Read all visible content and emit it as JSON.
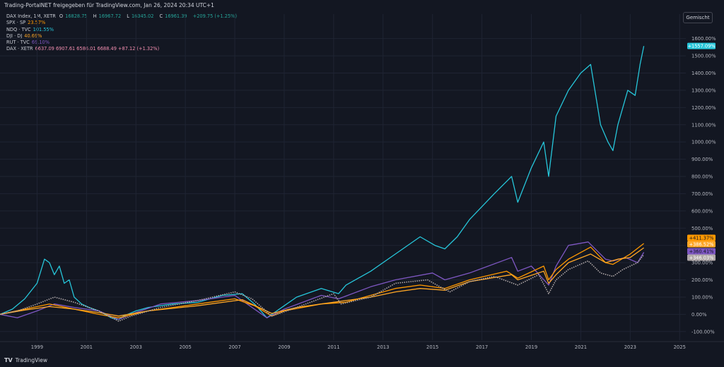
{
  "header": {
    "text": "Trading-PortalNET freigegeben für TradingView.com, Jan 26, 2024 20:34 UTC+1"
  },
  "mode_button": {
    "label": "Gemischt"
  },
  "footer": {
    "logo": "TV",
    "brand": "TradingView"
  },
  "legend": {
    "main": {
      "name": "DAX Index, 1M, XETR",
      "o_label": "O",
      "o": "16828.75",
      "h_label": "H",
      "h": "16967.72",
      "l_label": "L",
      "l": "16345.02",
      "c_label": "C",
      "c": "16961.39",
      "chg": "+209.75 (+1.25%)",
      "color": "#26a69a"
    },
    "items": [
      {
        "name": "SPX · SP",
        "value": "23.57%",
        "color": "#ff9800"
      },
      {
        "name": "NDQ · TVC",
        "value": "101.55%",
        "color": "#26c6da"
      },
      {
        "name": "DJI · DJ",
        "value": "40.69%",
        "color": "#ffa726"
      },
      {
        "name": "RUT · TVC",
        "value": "69.10%",
        "color": "#7e57c2"
      }
    ],
    "dax2": {
      "name": "DAX · XETR",
      "values": "6637.09  6907.61  6586.01  6688.49  +87.12 (+1.32%)",
      "color": "#f48fb1"
    }
  },
  "chart_data": {
    "type": "line",
    "title": "",
    "xlabel": "",
    "ylabel": "",
    "x_ticks": [
      "1999",
      "2001",
      "2003",
      "2005",
      "2007",
      "2009",
      "2011",
      "2013",
      "2015",
      "2017",
      "2019",
      "2021",
      "2023",
      "2025"
    ],
    "xlim": [
      1998.0,
      2025.75
    ],
    "y_ticks": [
      "-100.00%",
      "0.00%",
      "100.00%",
      "200.00%",
      "300.00%",
      "400.00%",
      "500.00%",
      "600.00%",
      "700.00%",
      "800.00%",
      "900.00%",
      "1000.00%",
      "1100.00%",
      "1200.00%",
      "1300.00%",
      "1400.00%",
      "1500.00%",
      "1600.00%"
    ],
    "ylim": [
      -150,
      1660
    ],
    "grid": true,
    "series": [
      {
        "name": "NDQ · TVC",
        "color": "#26c6da",
        "last_label": "+1557.09%",
        "last_value": 1557,
        "x": [
          1998.0,
          1998.5,
          1999.0,
          1999.5,
          1999.8,
          2000.0,
          2000.2,
          2000.4,
          2000.6,
          2000.8,
          2001.0,
          2001.3,
          2001.6,
          2002.0,
          2002.5,
          2002.8,
          2003.0,
          2003.5,
          2004.0,
          2005.0,
          2006.0,
          2007.0,
          2007.8,
          2008.3,
          2008.8,
          2009.0,
          2009.5,
          2010.0,
          2011.0,
          2011.7,
          2012.0,
          2013.0,
          2014.0,
          2015.0,
          2015.6,
          2016.0,
          2016.5,
          2017.0,
          2018.0,
          2018.7,
          2018.95,
          2019.5,
          2020.0,
          2020.2,
          2020.5,
          2021.0,
          2021.5,
          2021.9,
          2022.3,
          2022.6,
          2022.8,
          2023.0,
          2023.4,
          2023.7,
          2023.9,
          2024.05
        ],
        "values": [
          0,
          30,
          90,
          180,
          320,
          300,
          230,
          280,
          180,
          200,
          100,
          60,
          40,
          20,
          -20,
          -30,
          -10,
          20,
          40,
          60,
          70,
          110,
          120,
          60,
          -20,
          0,
          50,
          100,
          150,
          120,
          170,
          250,
          350,
          450,
          400,
          380,
          450,
          550,
          700,
          800,
          650,
          850,
          1000,
          800,
          1150,
          1300,
          1400,
          1450,
          1100,
          1000,
          950,
          1100,
          1300,
          1270,
          1450,
          1557
        ]
      },
      {
        "name": "RUT · TVC",
        "color": "#7e57c2",
        "last_label": "+360.41%",
        "last_value": 360,
        "x": [
          1998.0,
          1998.7,
          1999.5,
          2000.2,
          2001.0,
          2002.0,
          2002.8,
          2003.5,
          2004.5,
          2006.0,
          2007.5,
          2008.8,
          2009.5,
          2011.0,
          2011.7,
          2013.0,
          2014.0,
          2015.5,
          2016.0,
          2017.0,
          2018.7,
          2018.95,
          2019.5,
          2020.2,
          2020.5,
          2021.0,
          2021.8,
          2022.5,
          2022.8,
          2023.3,
          2023.8,
          2024.05
        ],
        "values": [
          0,
          -20,
          20,
          60,
          40,
          20,
          -30,
          10,
          60,
          80,
          110,
          -20,
          30,
          110,
          90,
          160,
          200,
          240,
          200,
          240,
          330,
          250,
          280,
          170,
          280,
          400,
          420,
          320,
          310,
          330,
          300,
          360
        ]
      },
      {
        "name": "SPX · SP",
        "color": "#ff9800",
        "last_label": "+411.37%",
        "last_value": 411,
        "x": [
          1998.0,
          1999.0,
          2000.0,
          2001.0,
          2002.0,
          2002.8,
          2004.0,
          2005.0,
          2006.0,
          2007.5,
          2008.3,
          2009.0,
          2009.5,
          2011.0,
          2012.0,
          2013.0,
          2014.0,
          2015.0,
          2016.0,
          2017.0,
          2018.5,
          2018.95,
          2020.0,
          2020.2,
          2020.5,
          2021.0,
          2021.9,
          2022.5,
          2022.8,
          2023.5,
          2024.05
        ],
        "values": [
          0,
          30,
          60,
          30,
          0,
          -20,
          20,
          40,
          60,
          90,
          50,
          -10,
          20,
          60,
          70,
          110,
          150,
          170,
          150,
          200,
          250,
          210,
          280,
          200,
          260,
          320,
          390,
          300,
          290,
          350,
          411
        ]
      },
      {
        "name": "DJI · DJ",
        "color": "#ffa726",
        "last_label": "+386.52%",
        "last_value": 386,
        "x": [
          1998.0,
          1999.0,
          2000.0,
          2001.0,
          2002.0,
          2002.8,
          2004.0,
          2006.0,
          2007.8,
          2009.0,
          2010.0,
          2011.0,
          2013.0,
          2014.0,
          2015.0,
          2016.0,
          2017.0,
          2018.7,
          2018.95,
          2020.0,
          2020.2,
          2020.5,
          2021.0,
          2021.9,
          2022.5,
          2023.0,
          2023.5,
          2024.05
        ],
        "values": [
          0,
          25,
          45,
          30,
          10,
          -10,
          20,
          50,
          85,
          5,
          40,
          60,
          100,
          130,
          150,
          140,
          190,
          230,
          200,
          250,
          180,
          230,
          300,
          350,
          300,
          320,
          330,
          386
        ]
      },
      {
        "name": "DAX · XETR",
        "color": "#b0a8a8",
        "last_label": "+346.03%",
        "last_value": 346,
        "x": [
          1998.0,
          1998.7,
          1999.5,
          2000.2,
          2001.0,
          2002.0,
          2002.8,
          2003.3,
          2004.5,
          2006.0,
          2007.5,
          2008.2,
          2009.0,
          2010.0,
          2011.5,
          2011.8,
          2013.0,
          2014.0,
          2015.3,
          2015.8,
          2016.2,
          2017.0,
          2018.0,
          2018.95,
          2019.8,
          2020.2,
          2020.5,
          2021.0,
          2021.8,
          2022.3,
          2022.8,
          2023.2,
          2023.8,
          2024.05
        ],
        "values": [
          0,
          20,
          60,
          100,
          70,
          20,
          -40,
          -10,
          40,
          80,
          130,
          90,
          -10,
          40,
          120,
          60,
          100,
          180,
          200,
          160,
          130,
          190,
          220,
          170,
          230,
          120,
          200,
          260,
          310,
          240,
          220,
          260,
          300,
          346
        ]
      }
    ]
  }
}
